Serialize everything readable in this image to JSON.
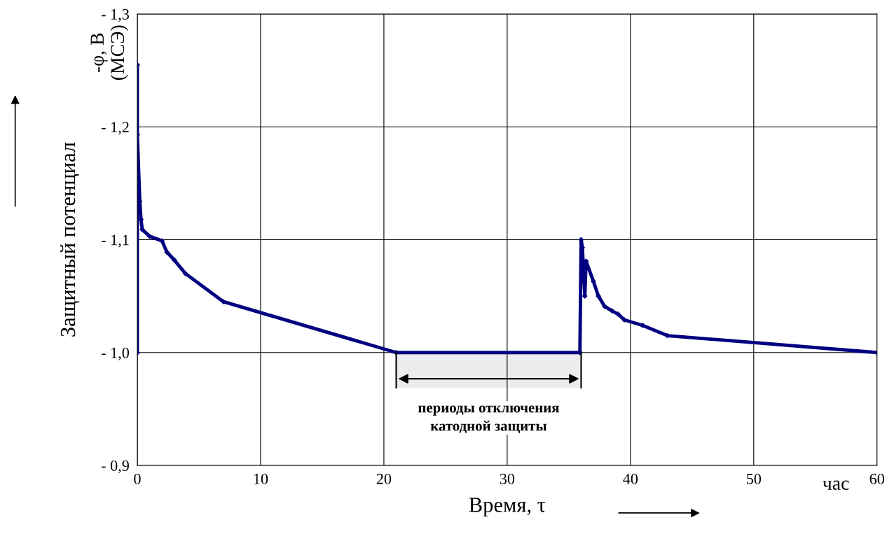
{
  "chart_data": {
    "type": "line",
    "xlabel": "Время, τ",
    "ylabel": "Защитный потенциал",
    "annotations": [
      "-φ, В\n(МСЭ)",
      "час"
    ],
    "x": [
      0,
      0,
      0,
      0.2,
      0.3,
      0.4,
      1.0,
      2.0,
      2.4,
      3.0,
      3.9,
      7.0,
      21,
      35.9,
      36.0,
      36.1,
      36.3,
      36.4,
      37.0,
      37.4,
      37.9,
      38.5,
      39.0,
      39.5,
      41.0,
      43.0,
      60
    ],
    "series": [
      {
        "color": "#000080",
        "values": [
          -1.0,
          -1.255,
          -1.193,
          -1.134,
          -1.118,
          -1.109,
          -1.103,
          -1.099,
          -1.089,
          -1.082,
          -1.07,
          -1.045,
          -1.0,
          -1.0,
          -1.1,
          -1.093,
          -1.05,
          -1.081,
          -1.063,
          -1.05,
          -1.041,
          -1.037,
          -1.034,
          -1.029,
          -1.024,
          -1.015,
          -1.0
        ]
      }
    ],
    "bands": [
      {
        "axis": "x",
        "from": 21,
        "to": 36,
        "label": "периоды отключения\nкатодной защиты",
        "color": "#ececec"
      }
    ],
    "xlim": [
      0,
      60
    ],
    "xticks": [
      0,
      10,
      20,
      30,
      40,
      50,
      60
    ],
    "ylim": [
      -0.9,
      -1.3
    ],
    "yticks": [
      {
        "value": -0.9,
        "label": "- 0,9"
      },
      {
        "value": -1.0,
        "label": "- 1,0"
      },
      {
        "value": -1.1,
        "label": "- 1,1"
      },
      {
        "value": -1.2,
        "label": "- 1,2"
      },
      {
        "value": -1.3,
        "label": "- 1,3"
      }
    ],
    "grid": true,
    "marker": "diamond",
    "line_style": "solid"
  }
}
